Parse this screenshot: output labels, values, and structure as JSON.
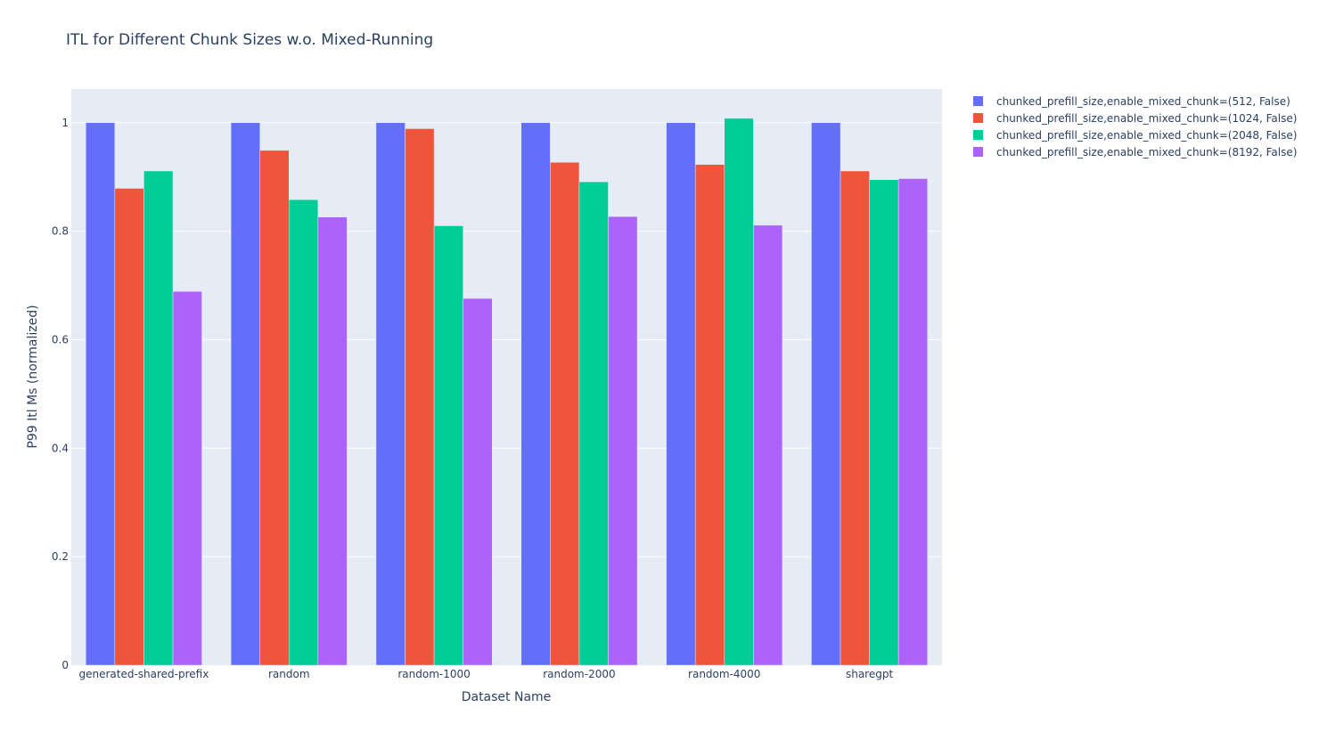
{
  "chart_data": {
    "type": "bar",
    "title": "ITL for Different Chunk Sizes w.o. Mixed-Running",
    "xlabel": "Dataset Name",
    "ylabel": "P99 Itl Ms (normalized)",
    "categories": [
      "generated-shared-prefix",
      "random",
      "random-1000",
      "random-2000",
      "random-4000",
      "sharegpt"
    ],
    "ylim": [
      0,
      1.062
    ],
    "yticks": [
      0,
      0.2,
      0.4,
      0.6,
      0.8,
      1
    ],
    "ytick_labels": [
      "0",
      "0.2",
      "0.4",
      "0.6",
      "0.8",
      "1"
    ],
    "grid": true,
    "legend_position": "top-right",
    "plot_bgcolor": "#E5ECF6",
    "series": [
      {
        "name": "chunked_prefill_size,enable_mixed_chunk=(512, False)",
        "color": "#636EFA",
        "values": [
          1.0,
          1.0,
          1.0,
          1.0,
          1.0,
          1.0
        ]
      },
      {
        "name": "chunked_prefill_size,enable_mixed_chunk=(1024, False)",
        "color": "#EF553B",
        "values": [
          0.879,
          0.949,
          0.989,
          0.927,
          0.923,
          0.911
        ]
      },
      {
        "name": "chunked_prefill_size,enable_mixed_chunk=(2048, False)",
        "color": "#00CC96",
        "values": [
          0.911,
          0.858,
          0.81,
          0.891,
          1.008,
          0.895
        ]
      },
      {
        "name": "chunked_prefill_size,enable_mixed_chunk=(8192, False)",
        "color": "#AB63FA",
        "values": [
          0.689,
          0.826,
          0.676,
          0.827,
          0.811,
          0.897
        ]
      }
    ]
  }
}
